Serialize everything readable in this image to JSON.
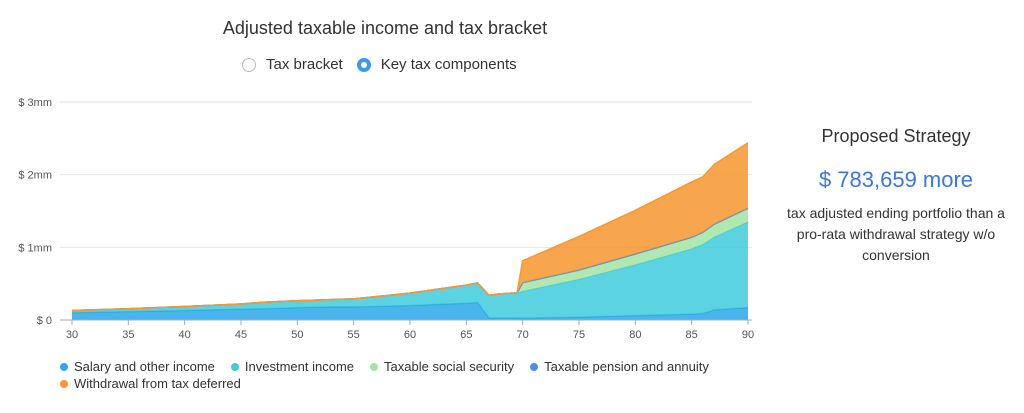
{
  "title": "Adjusted taxable income and tax bracket",
  "view_toggle": {
    "options": [
      "Tax bracket",
      "Key tax components"
    ],
    "selected": "Key tax components"
  },
  "strategy": {
    "title": "Proposed Strategy",
    "value": "$ 783,659 more",
    "description": "tax adjusted ending portfolio than a pro-rata withdrawal strategy w/o conversion"
  },
  "colors": {
    "salary": "#2aa8ea",
    "investment": "#3fcbdb",
    "social_security": "#a3e4a5",
    "pension": "#4a8fe7",
    "withdrawal": "#f7972e"
  },
  "chart_data": {
    "type": "area",
    "stacked": true,
    "title": "Adjusted taxable income and tax bracket",
    "xlabel": "",
    "ylabel": "",
    "xlim": [
      30,
      90
    ],
    "ylim": [
      0,
      3000000
    ],
    "x_ticks": [
      30,
      35,
      40,
      45,
      50,
      55,
      60,
      65,
      70,
      75,
      80,
      85,
      90
    ],
    "y_ticks": [
      0,
      1000000,
      2000000,
      3000000
    ],
    "y_tick_labels": [
      "$ 0",
      "$ 1mm",
      "$ 2mm",
      "$ 3mm"
    ],
    "grid": true,
    "legend_position": "bottom",
    "x": [
      30,
      35,
      40,
      45,
      47,
      50,
      53,
      55,
      60,
      65,
      66,
      67,
      68,
      69,
      69.5,
      70,
      75,
      80,
      85,
      86,
      87,
      90
    ],
    "series": [
      {
        "name": "Salary and other income",
        "key": "salary",
        "values": [
          100000,
          115000,
          130000,
          150000,
          155000,
          170000,
          180000,
          180000,
          200000,
          230000,
          240000,
          30000,
          30000,
          30000,
          30000,
          25000,
          40000,
          60000,
          80000,
          90000,
          140000,
          170000
        ]
      },
      {
        "name": "Investment income",
        "key": "investment",
        "values": [
          30000,
          40000,
          55000,
          70000,
          90000,
          95000,
          100000,
          110000,
          170000,
          250000,
          270000,
          310000,
          330000,
          340000,
          340000,
          370000,
          520000,
          700000,
          900000,
          950000,
          1000000,
          1180000
        ]
      },
      {
        "name": "Taxable social security",
        "key": "social_security",
        "values": [
          0,
          0,
          0,
          0,
          0,
          0,
          0,
          0,
          0,
          0,
          0,
          0,
          0,
          0,
          0,
          110000,
          120000,
          140000,
          150000,
          160000,
          170000,
          180000
        ]
      },
      {
        "name": "Taxable pension and annuity",
        "key": "pension",
        "values": [
          0,
          0,
          0,
          0,
          0,
          0,
          0,
          0,
          0,
          0,
          0,
          0,
          0,
          0,
          0,
          10000,
          10000,
          10000,
          10000,
          10000,
          10000,
          10000
        ]
      },
      {
        "name": "Withdrawal from tax deferred",
        "key": "withdrawal",
        "values": [
          0,
          0,
          0,
          0,
          0,
          0,
          0,
          0,
          0,
          0,
          0,
          0,
          0,
          0,
          0,
          300000,
          460000,
          600000,
          760000,
          760000,
          820000,
          900000
        ]
      }
    ]
  }
}
